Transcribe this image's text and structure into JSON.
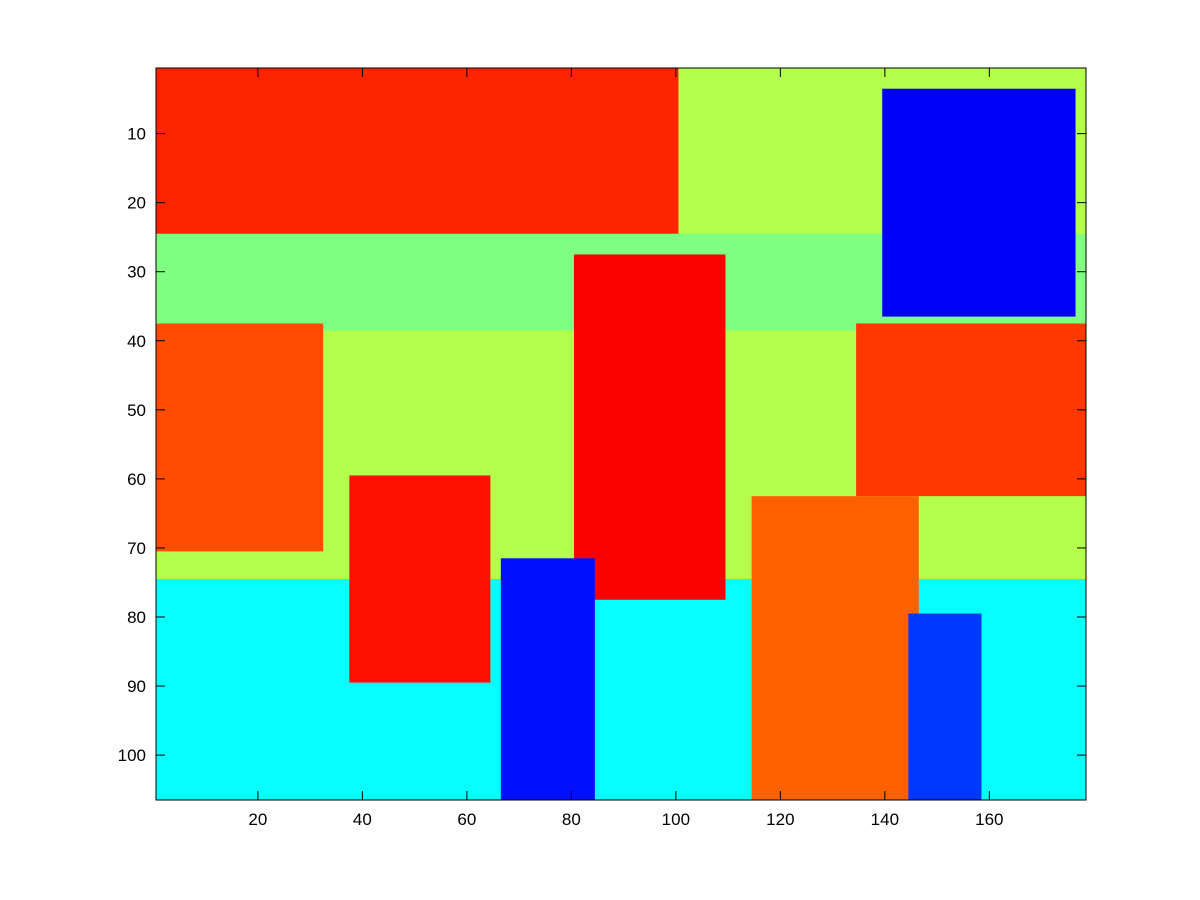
{
  "chart_data": {
    "type": "heatmap",
    "title": "",
    "xlabel": "",
    "ylabel": "",
    "colormap": "jet",
    "image_size": {
      "cols": 178,
      "rows": 106
    },
    "xlim": [
      0.5,
      178.5
    ],
    "ylim": [
      0.5,
      106.5
    ],
    "y_reversed": true,
    "x_ticks": [
      20,
      40,
      60,
      80,
      100,
      120,
      140,
      160
    ],
    "y_ticks": [
      10,
      20,
      30,
      40,
      50,
      60,
      70,
      80,
      90,
      100
    ],
    "grid": false,
    "colorbar": false,
    "regions": [
      {
        "name": "top-left wall",
        "cols": [
          1,
          100
        ],
        "rows": [
          1,
          25
        ],
        "value": 0.84
      },
      {
        "name": "upper band",
        "cols": [
          1,
          178
        ],
        "rows": [
          25,
          38
        ],
        "value": 0.5
      },
      {
        "name": "left shelves",
        "cols": [
          1,
          32
        ],
        "rows": [
          38,
          70
        ],
        "value": 0.8
      },
      {
        "name": "right shelves",
        "cols": [
          135,
          178
        ],
        "rows": [
          38,
          62
        ],
        "value": 0.82
      },
      {
        "name": "lower floor",
        "cols": [
          1,
          178
        ],
        "rows": [
          75,
          106
        ],
        "value": 0.38
      },
      {
        "name": "top-right dark object",
        "cols": [
          140,
          176
        ],
        "rows": [
          4,
          36
        ],
        "value": 0.12
      },
      {
        "name": "center face",
        "cols": [
          81,
          109
        ],
        "rows": [
          28,
          77
        ],
        "value": 0.88
      },
      {
        "name": "left face",
        "cols": [
          38,
          64
        ],
        "rows": [
          60,
          89
        ],
        "value": 0.86
      },
      {
        "name": "right face",
        "cols": [
          115,
          146
        ],
        "rows": [
          63,
          106
        ],
        "value": 0.78
      },
      {
        "name": "center dark strip",
        "cols": [
          67,
          84
        ],
        "rows": [
          72,
          106
        ],
        "value": 0.14
      },
      {
        "name": "right dark strip",
        "cols": [
          145,
          158
        ],
        "rows": [
          80,
          106
        ],
        "value": 0.18
      }
    ],
    "value_range": [
      0,
      1
    ]
  }
}
